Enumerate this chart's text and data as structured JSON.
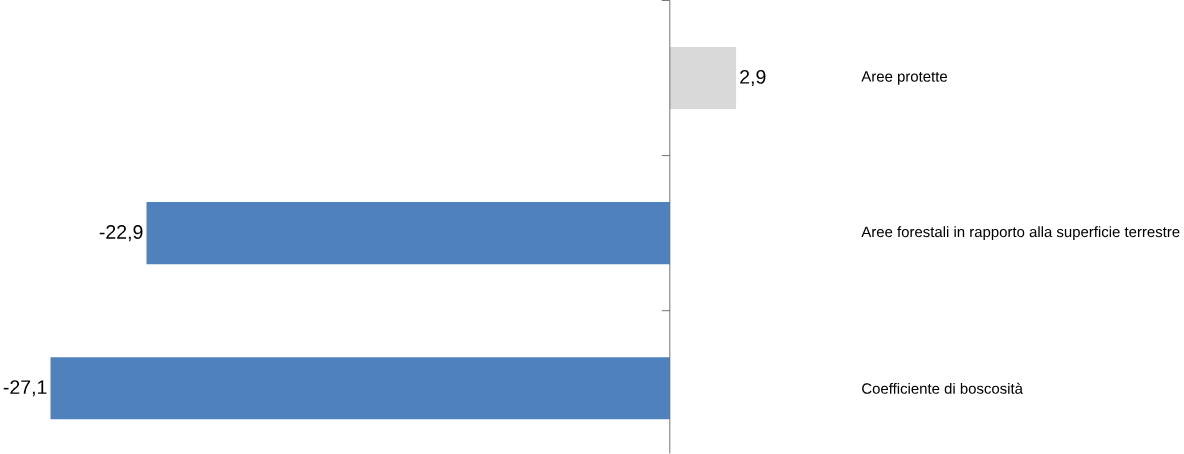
{
  "chart_data": {
    "type": "bar",
    "orientation": "horizontal",
    "categories": [
      "Aree protette",
      "Aree forestali in rapporto alla superficie terrestre",
      "Coefficiente di boscosità"
    ],
    "values": [
      2.9,
      -22.9,
      -27.1
    ],
    "colors": [
      "#d9d9d9",
      "#4f81bd",
      "#4f81bd"
    ],
    "value_labels": [
      "2,9",
      "-22,9",
      "-27,1"
    ]
  }
}
